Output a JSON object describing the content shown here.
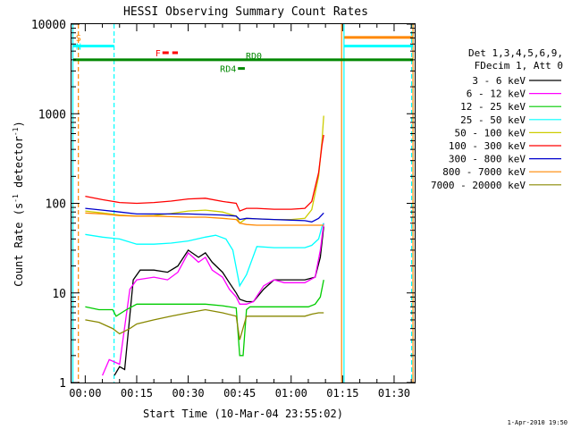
{
  "chart_data": {
    "type": "line",
    "title": "HESSI Observing Summary Count Rates",
    "xlabel": "Start Time (10-Mar-04 23:55:02)",
    "ylabel": "Count Rate (s^-1 detector^-1)",
    "ylabel_parts": {
      "main": "Count Rate (s",
      "sup1": "-1",
      "mid": " detector",
      "sup2": "-1",
      "end": ")"
    },
    "yscale": "log",
    "ylim": [
      1,
      10000
    ],
    "xlim_minutes": [
      -4,
      96
    ],
    "x_ticks": [
      {
        "m": 0,
        "label": "00:00"
      },
      {
        "m": 15,
        "label": "00:15"
      },
      {
        "m": 30,
        "label": "00:30"
      },
      {
        "m": 45,
        "label": "00:45"
      },
      {
        "m": 60,
        "label": "01:00"
      },
      {
        "m": 75,
        "label": "01:15"
      },
      {
        "m": 90,
        "label": "01:30"
      }
    ],
    "y_ticks": [
      {
        "v": 1,
        "label": "1"
      },
      {
        "v": 10,
        "label": "10"
      },
      {
        "v": 100,
        "label": "100"
      },
      {
        "v": 1000,
        "label": "1000"
      },
      {
        "v": 10000,
        "label": "10000"
      }
    ],
    "legend_header": [
      "Det 1,3,4,5,6,9,",
      "FDecim 1, Att 0"
    ],
    "legend_placement": "right",
    "series": [
      {
        "name": "3 - 6 keV",
        "color": "#000000",
        "x": [
          8.5,
          10,
          11.5,
          14,
          16,
          20,
          24,
          27,
          30,
          33,
          35,
          37,
          40,
          42,
          44,
          45,
          47,
          49,
          52,
          55,
          58,
          61,
          64,
          67,
          68.5,
          69.5
        ],
        "y": [
          1.2,
          1.5,
          1.4,
          14,
          18,
          18,
          17,
          20,
          30,
          25,
          28,
          22,
          17,
          13,
          10,
          8.5,
          8,
          8,
          11,
          14,
          14,
          14,
          14,
          15,
          25,
          55
        ]
      },
      {
        "name": "6 - 12 keV",
        "color": "#ff00ff",
        "x": [
          5,
          7,
          10,
          13,
          15,
          20,
          24,
          27,
          30,
          33,
          35,
          37,
          40,
          42,
          44,
          45,
          47,
          49,
          52,
          55,
          58,
          61,
          64,
          67,
          68.5,
          69.5
        ],
        "y": [
          1.2,
          1.8,
          1.6,
          11,
          14,
          15,
          14,
          17,
          28,
          22,
          25,
          18,
          15,
          11,
          9,
          7.5,
          7.5,
          8,
          12,
          14,
          13,
          13,
          13,
          15,
          30,
          60
        ]
      },
      {
        "name": "12 - 25 keV",
        "color": "#00cc00",
        "x": [
          0,
          4,
          8,
          9,
          12,
          15,
          20,
          25,
          30,
          35,
          40,
          44,
          45,
          46,
          47,
          48,
          52,
          56,
          60,
          63,
          65,
          67,
          68.5,
          69.5
        ],
        "y": [
          7,
          6.5,
          6.5,
          5.5,
          6.5,
          7.5,
          7.5,
          7.5,
          7.5,
          7.5,
          7.2,
          6.8,
          2,
          2,
          6.5,
          7,
          7,
          7,
          7,
          7,
          7,
          7.5,
          9,
          14
        ]
      },
      {
        "name": "25 - 50 keV",
        "color": "#00ffff",
        "x": [
          0,
          5,
          10,
          15,
          20,
          25,
          30,
          35,
          38,
          41,
          43,
          45,
          47,
          50,
          55,
          60,
          64,
          66,
          68,
          69,
          69.5
        ],
        "y": [
          45,
          42,
          40,
          35,
          35,
          36,
          38,
          42,
          44,
          40,
          30,
          12,
          16,
          33,
          32,
          32,
          32,
          34,
          40,
          55,
          60
        ]
      },
      {
        "name": "50 - 100 keV",
        "color": "#cccc00",
        "x": [
          0,
          5,
          10,
          15,
          20,
          25,
          30,
          35,
          40,
          44,
          45,
          47,
          50,
          55,
          60,
          64,
          66,
          68,
          69,
          69.5
        ],
        "y": [
          82,
          78,
          74,
          72,
          73,
          77,
          82,
          84,
          80,
          72,
          60,
          68,
          67,
          66,
          66,
          68,
          85,
          200,
          500,
          950
        ]
      },
      {
        "name": "100 - 300 keV",
        "color": "#ff0000",
        "x": [
          0,
          5,
          10,
          15,
          20,
          25,
          30,
          35,
          40,
          44,
          45,
          47,
          50,
          55,
          60,
          64,
          66,
          68,
          69,
          69.5
        ],
        "y": [
          120,
          110,
          102,
          100,
          102,
          106,
          112,
          114,
          105,
          100,
          82,
          88,
          88,
          86,
          86,
          88,
          105,
          220,
          450,
          580
        ]
      },
      {
        "name": "300 - 800 keV",
        "color": "#0000cc",
        "x": [
          0,
          5,
          10,
          15,
          20,
          25,
          30,
          35,
          40,
          44,
          45,
          47,
          50,
          55,
          60,
          64,
          66,
          68,
          69.5
        ],
        "y": [
          88,
          84,
          80,
          76,
          76,
          76,
          76,
          75,
          74,
          72,
          66,
          68,
          67,
          66,
          65,
          64,
          62,
          68,
          78
        ]
      },
      {
        "name": "800 - 7000 keV",
        "color": "#ff8800",
        "x": [
          0,
          5,
          10,
          15,
          20,
          25,
          30,
          35,
          40,
          44,
          45,
          47,
          50,
          55,
          60,
          64,
          66,
          68,
          69.5
        ],
        "y": [
          78,
          76,
          73,
          72,
          72,
          71,
          70,
          70,
          68,
          66,
          60,
          58,
          57,
          57,
          57,
          57,
          57,
          57,
          57
        ]
      },
      {
        "name": "7000 - 20000 keV",
        "color": "#888800",
        "x": [
          0,
          4,
          8,
          10,
          13,
          15,
          20,
          25,
          30,
          35,
          40,
          44,
          45,
          47,
          52,
          56,
          60,
          64,
          66,
          68,
          69.5
        ],
        "y": [
          5,
          4.7,
          4,
          3.5,
          4,
          4.5,
          5,
          5.5,
          6,
          6.5,
          6,
          5.5,
          3,
          5.5,
          5.5,
          5.5,
          5.5,
          5.5,
          5.8,
          6,
          6
        ]
      }
    ],
    "state_bars": [
      {
        "label": "S",
        "color": "#ff8800",
        "y": 7100,
        "x_start": -3.5,
        "x_end": -3.5
      },
      {
        "label": "N",
        "color": "#00ffff",
        "y": 5700,
        "x_start": -3.5,
        "x_end": 8.4
      },
      {
        "label": "",
        "color": "#00ffff",
        "y": 5700,
        "x_start": 75.5,
        "x_end": 95.5
      },
      {
        "label": "",
        "color": "#ff8800",
        "y": 7100,
        "x_start": 75.5,
        "x_end": 95.5
      },
      {
        "label": "F",
        "color": "#ff0000",
        "y": 4800,
        "x_start": 22.5,
        "x_end": 27
      },
      {
        "label": "",
        "color": "#008800",
        "y": 4000,
        "x_start": -3.5,
        "x_end": 95.5
      },
      {
        "label": "RD4",
        "color": "#008800",
        "y": 3200,
        "x_start": 44.5,
        "x_end": 46.5
      },
      {
        "label": "RD0",
        "color": "#008800",
        "y": 4000,
        "x_start": 46,
        "x_end": 46
      }
    ],
    "vertical_markers": [
      {
        "color": "#00ffff",
        "x": -3.6,
        "style": "solid"
      },
      {
        "color": "#ff8800",
        "x": -2,
        "style": "dashed"
      },
      {
        "color": "#00ffff",
        "x": 8.4,
        "style": "dashed"
      },
      {
        "color": "#ff8800",
        "x": 74.7,
        "style": "solid"
      },
      {
        "color": "#00ffff",
        "x": 75.4,
        "style": "solid"
      },
      {
        "color": "#00ffff",
        "x": 95.1,
        "style": "dashed"
      },
      {
        "color": "#ff8800",
        "x": 95.5,
        "style": "solid"
      }
    ]
  },
  "footer": {
    "timestamp": "1-Apr-2010 19:50"
  }
}
